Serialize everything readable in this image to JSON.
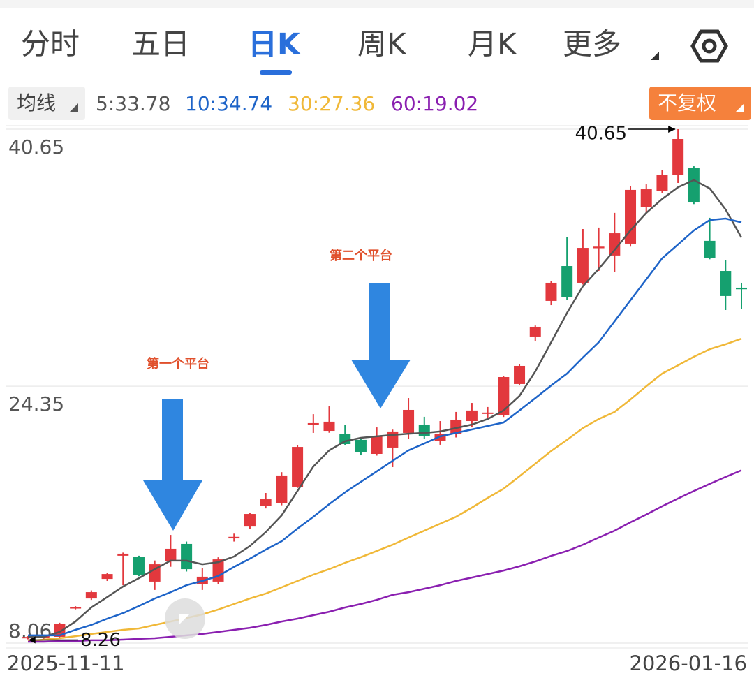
{
  "tabs": [
    "分时",
    "五日",
    "日K",
    "周K",
    "月K",
    "更多"
  ],
  "selected_tab": 2,
  "ma_button": "均线",
  "adjust_button": "不复权",
  "chart_data": {
    "type": "candlestick",
    "categories": [
      "2025-11-11",
      null,
      null,
      null,
      null,
      null,
      null,
      null,
      null,
      null,
      null,
      null,
      null,
      null,
      null,
      null,
      null,
      null,
      null,
      null,
      null,
      null,
      null,
      null,
      null,
      null,
      null,
      null,
      null,
      null,
      null,
      null,
      null,
      null,
      null,
      null,
      null,
      null,
      null,
      null,
      null,
      null,
      null,
      null,
      null,
      "2026-01-16"
    ],
    "open": [
      8.4,
      8.4,
      8.46,
      10.25,
      10.89,
      12.13,
      13.6,
      13.55,
      11.96,
      13.28,
      14.35,
      11.82,
      11.96,
      14.7,
      15.45,
      16.78,
      16.96,
      17.98,
      21.92,
      21.52,
      21.3,
      20.95,
      20.06,
      20.46,
      21.39,
      21.92,
      20.86,
      21.3,
      22.14,
      22.6,
      22.54,
      24.49,
      27.5,
      29.76,
      31.97,
      30.91,
      33.1,
      32.64,
      33.39,
      35.73,
      36.75,
      37.77,
      38.21,
      33.57,
      31.66,
      30.6
    ],
    "high": [
      8.5,
      8.6,
      9.35,
      10.4,
      11.4,
      12.5,
      13.8,
      13.6,
      13.3,
      14.92,
      14.5,
      12.8,
      13.5,
      15.0,
      16.3,
      17.58,
      18.9,
      20.6,
      22.58,
      23.07,
      21.92,
      21.1,
      21.74,
      21.6,
      23.6,
      22.41,
      22.14,
      22.72,
      23.29,
      23.03,
      25.0,
      25.77,
      28.2,
      31.0,
      33.79,
      34.32,
      34.41,
      35.34,
      37.06,
      37.15,
      38.04,
      40.65,
      38.3,
      35.03,
      32.37,
      30.91
    ],
    "low": [
      8.3,
      8.26,
      8.4,
      10.2,
      10.8,
      12.0,
      11.73,
      12.3,
      11.43,
      12.9,
      12.6,
      11.43,
      11.8,
      14.5,
      15.3,
      16.6,
      16.8,
      17.9,
      21.39,
      21.4,
      20.6,
      19.97,
      19.95,
      19.22,
      21.0,
      21.0,
      20.64,
      21.1,
      21.74,
      22.27,
      22.4,
      24.4,
      27.23,
      29.49,
      29.8,
      30.8,
      31.66,
      31.57,
      33.2,
      35.34,
      36.6,
      37.24,
      35.9,
      32.4,
      29.18,
      29.27
    ],
    "close": [
      8.45,
      8.5,
      9.3,
      10.35,
      11.29,
      12.44,
      13.73,
      12.4,
      13.06,
      14.04,
      12.75,
      12.27,
      13.37,
      14.8,
      16.25,
      17.18,
      18.69,
      20.5,
      22.01,
      22.1,
      20.68,
      20.19,
      21.17,
      21.48,
      22.85,
      21.17,
      21.3,
      22.23,
      22.81,
      22.68,
      24.93,
      25.64,
      28.12,
      30.91,
      30.02,
      33.12,
      33.2,
      34.05,
      36.8,
      36.84,
      37.77,
      40.03,
      36.0,
      32.46,
      30.07,
      30.5
    ],
    "up_color": "#e2383d",
    "down_color": "#15a06f",
    "series": [
      {
        "name": "5:33.78",
        "color": "#555555",
        "values": [
          8.46,
          8.46,
          8.77,
          9.43,
          10.32,
          10.98,
          11.65,
          12.18,
          12.75,
          13.29,
          13.29,
          13.06,
          13.19,
          13.55,
          14.22,
          15.1,
          16.16,
          17.71,
          19.26,
          20.28,
          20.86,
          21.08,
          21.17,
          21.26,
          21.34,
          21.39,
          21.48,
          21.7,
          21.92,
          22.27,
          22.81,
          23.73,
          25.29,
          27.14,
          29.0,
          30.69,
          31.79,
          32.99,
          34.23,
          35.34,
          36.22,
          36.97,
          37.42,
          36.89,
          35.56,
          33.78
        ]
      },
      {
        "name": "10:34.74",
        "color": "#1e64c8",
        "values": [
          8.55,
          8.55,
          8.55,
          8.9,
          9.21,
          9.61,
          9.96,
          10.41,
          10.89,
          11.29,
          11.73,
          12.0,
          12.31,
          12.89,
          13.42,
          13.99,
          14.52,
          15.32,
          16.07,
          16.87,
          17.62,
          18.29,
          18.95,
          19.62,
          20.28,
          20.72,
          21.17,
          21.39,
          21.61,
          21.83,
          22.05,
          22.81,
          23.6,
          24.4,
          25.15,
          26.17,
          27.14,
          28.47,
          29.8,
          31.13,
          32.46,
          33.34,
          34.23,
          34.89,
          34.98,
          34.74
        ]
      },
      {
        "name": "30:27.36",
        "color": "#f0b838",
        "values": [
          8.19,
          8.28,
          8.37,
          8.5,
          8.64,
          8.77,
          8.9,
          8.99,
          9.21,
          9.43,
          9.65,
          9.88,
          10.19,
          10.54,
          10.89,
          11.2,
          11.6,
          12.0,
          12.4,
          12.75,
          13.15,
          13.51,
          13.9,
          14.3,
          14.75,
          15.19,
          15.63,
          16.07,
          16.65,
          17.27,
          17.85,
          18.64,
          19.44,
          20.24,
          20.95,
          21.7,
          22.27,
          22.72,
          23.51,
          24.35,
          25.15,
          25.68,
          26.22,
          26.7,
          27.01,
          27.36
        ]
      },
      {
        "name": "60:19.02",
        "color": "#8a1fb0",
        "values": [
          8.15,
          8.15,
          8.19,
          8.19,
          8.24,
          8.24,
          8.28,
          8.33,
          8.37,
          8.46,
          8.55,
          8.64,
          8.77,
          8.9,
          9.03,
          9.21,
          9.43,
          9.61,
          9.83,
          10.05,
          10.32,
          10.54,
          10.8,
          11.12,
          11.29,
          11.51,
          11.73,
          12.0,
          12.22,
          12.44,
          12.66,
          12.93,
          13.24,
          13.59,
          13.9,
          14.3,
          14.75,
          15.19,
          15.72,
          16.21,
          16.74,
          17.23,
          17.71,
          18.16,
          18.6,
          19.02
        ]
      }
    ],
    "ylim": [
      8.06,
      40.65
    ],
    "yticks": [
      40.65,
      24.35,
      8.06
    ],
    "grid": true,
    "high_marker": 40.65,
    "low_marker": 8.26,
    "annotations": [
      "第一个平台",
      "第二个平台"
    ]
  }
}
